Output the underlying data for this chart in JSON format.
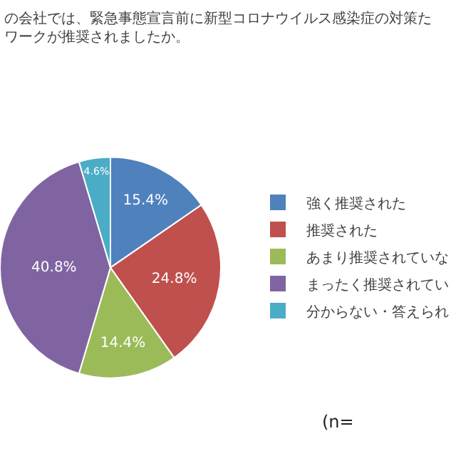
{
  "chart_data": {
    "type": "pie",
    "title": "の会社では、緊急事態宣言前に新型コロナウイルス感染症の対策たワークが推奨されましたか。",
    "categories": [
      "強く推奨された",
      "推奨された",
      "あまり推奨されていな",
      "まったく推奨されてい",
      "分からない・答えられ"
    ],
    "values": [
      15.4,
      24.8,
      14.4,
      40.8,
      4.6
    ],
    "colors": [
      "#4f81bd",
      "#c0504d",
      "#9bbb59",
      "#8064a2",
      "#4bacc6"
    ],
    "value_labels": [
      "15.4%",
      "24.8%",
      "14.4%",
      "40.8%",
      "4.6%"
    ],
    "legend": "right",
    "annotations": [
      "(n="
    ]
  }
}
